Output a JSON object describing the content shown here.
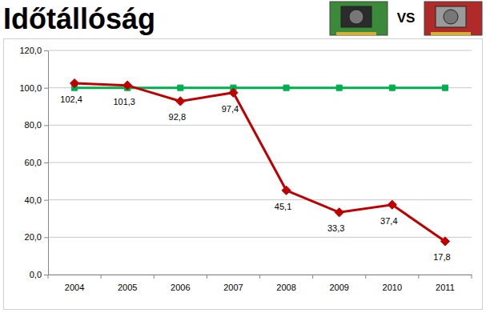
{
  "chart_data": {
    "type": "line",
    "title": "Időtállóság",
    "subtitle": "VS",
    "categories": [
      "2004",
      "2005",
      "2006",
      "2007",
      "2008",
      "2009",
      "2010",
      "2011"
    ],
    "series": [
      {
        "color": "#00b050",
        "marker": "square",
        "values": [
          100,
          100,
          100,
          100,
          100,
          100,
          100,
          100
        ]
      },
      {
        "color": "#c00000",
        "marker": "diamond",
        "data_labels": true,
        "values": [
          102.4,
          101.3,
          92.8,
          97.4,
          45.1,
          33.3,
          37.4,
          17.8
        ],
        "value_labels": [
          "102,4",
          "101,3",
          "92,8",
          "97,4",
          "45,1",
          "33,3",
          "37,4",
          "17,8"
        ]
      }
    ],
    "ylim": [
      0,
      120
    ],
    "yticks": [
      {
        "value": 0,
        "label": "0,0"
      },
      {
        "value": 20,
        "label": "20,0"
      },
      {
        "value": 40,
        "label": "40,0"
      },
      {
        "value": 60,
        "label": "60,0"
      },
      {
        "value": 80,
        "label": "80,0"
      },
      {
        "value": 100,
        "label": "100,0"
      },
      {
        "value": 120,
        "label": "120,0"
      }
    ],
    "grid": true
  }
}
